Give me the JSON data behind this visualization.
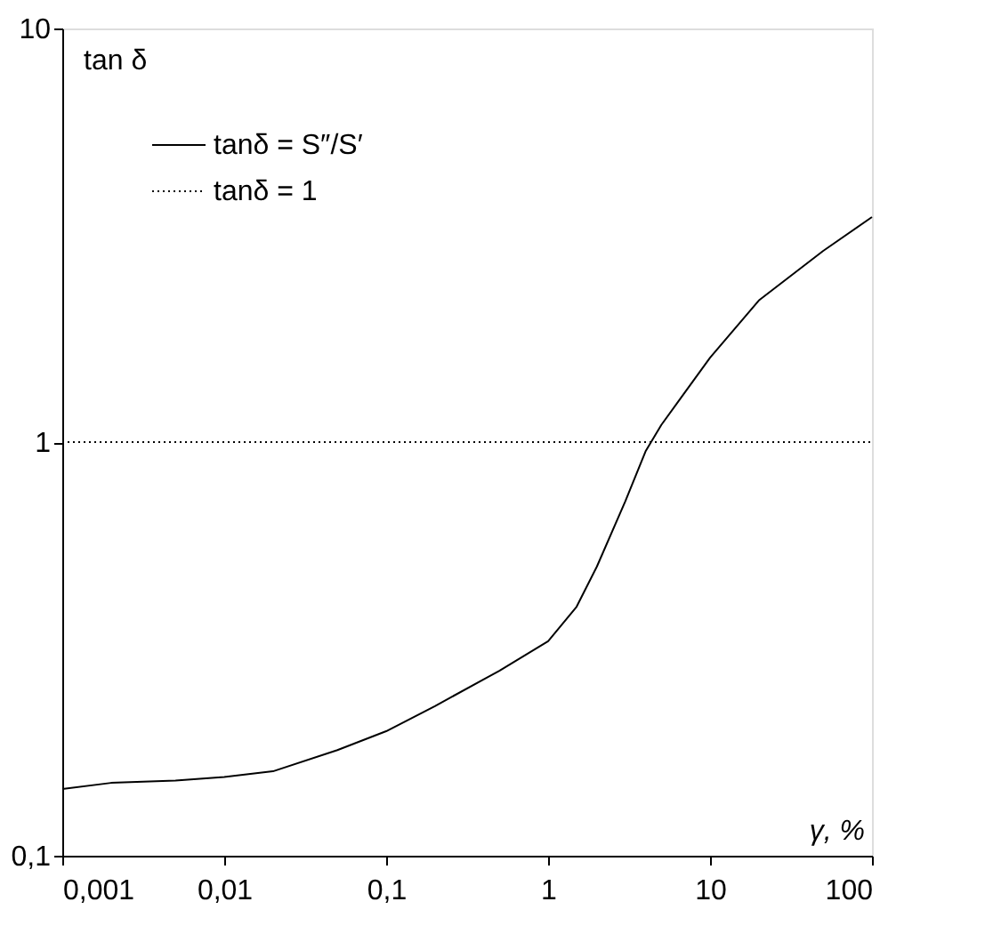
{
  "chart_data": {
    "type": "line",
    "xlabel": "γ, %",
    "ylabel": "tan δ",
    "log": "xy",
    "legend": "top left",
    "grid": false,
    "xlim": [
      0.001,
      100
    ],
    "xticks": [
      {
        "value": 0.001,
        "label": "0,001"
      },
      {
        "value": 0.01,
        "label": "0,01"
      },
      {
        "value": 0.1,
        "label": "0,1"
      },
      1,
      10,
      100
    ],
    "ylim": [
      0.1,
      10
    ],
    "yticks": [
      {
        "value": 0.1,
        "label": "0,1"
      },
      1,
      10
    ],
    "series": [
      {
        "name": "tanδ = S″/S′",
        "color": "#000000",
        "line_style": "solid",
        "x": [
          0.001,
          0.002,
          0.005,
          0.01,
          0.02,
          0.05,
          0.1,
          0.2,
          0.5,
          1,
          1.5,
          2,
          3,
          4,
          5,
          10,
          20,
          50,
          100
        ],
        "values": [
          0.145,
          0.15,
          0.152,
          0.155,
          0.16,
          0.18,
          0.2,
          0.23,
          0.28,
          0.33,
          0.4,
          0.5,
          0.72,
          0.95,
          1.1,
          1.6,
          2.2,
          2.9,
          3.5
        ]
      },
      {
        "name": "tanδ = 1",
        "color": "#000000",
        "line_style": "dotted",
        "x": [
          0.001,
          100
        ],
        "values": [
          1,
          1
        ]
      }
    ]
  }
}
